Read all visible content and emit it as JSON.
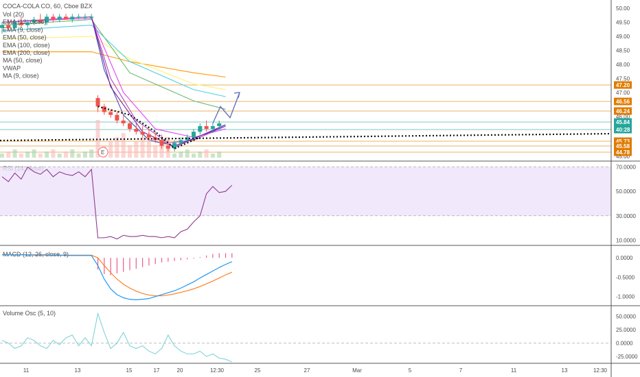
{
  "chart_data": {
    "type": "candlestick",
    "title": "COCA-COLA CO, 60, Cboe BZX",
    "main": {
      "legend": [
        "Vol (20)",
        "EMA (12, close)",
        "EMA (9, close)",
        "EMA (50, close)",
        "EMA (100, close)",
        "EMA (200, close)",
        "MA (50, close)",
        "VWAP",
        "MA (9, close)"
      ],
      "y_ticks": [
        "50.00",
        "49.50",
        "49.00",
        "48.50",
        "48.00",
        "47.50",
        "47.00",
        "46.00",
        "45.00"
      ],
      "ylim": [
        44.7,
        50.1
      ],
      "price_levels": [
        {
          "label": "47.20",
          "value": 47.2,
          "color": "#e07b00"
        },
        {
          "label": "46.56",
          "value": 46.56,
          "color": "#e07b00"
        },
        {
          "label": "46.24",
          "value": 46.24,
          "color": "#e07b00"
        },
        {
          "label": "45.84",
          "value": 45.84,
          "color": "#26a69a"
        },
        {
          "label": "40:28",
          "value": 45.62,
          "color": "#26a69a"
        },
        {
          "label": "45.73",
          "value": 45.28,
          "color": "#e07b00"
        },
        {
          "label": "45.58",
          "value": 44.98,
          "color": "#e07b00"
        },
        {
          "label": "44.78",
          "value": 44.78,
          "color": "#e07b00"
        }
      ],
      "candles": [
        {
          "x": 0,
          "o": 49.3,
          "h": 49.5,
          "l": 49.1,
          "c": 49.4
        },
        {
          "x": 1,
          "o": 49.4,
          "h": 49.6,
          "l": 49.2,
          "c": 49.3
        },
        {
          "x": 2,
          "o": 49.3,
          "h": 49.6,
          "l": 49.2,
          "c": 49.5
        },
        {
          "x": 3,
          "o": 49.5,
          "h": 49.7,
          "l": 49.3,
          "c": 49.4
        },
        {
          "x": 4,
          "o": 49.4,
          "h": 49.6,
          "l": 49.3,
          "c": 49.5
        },
        {
          "x": 5,
          "o": 49.5,
          "h": 49.7,
          "l": 49.4,
          "c": 49.6
        },
        {
          "x": 6,
          "o": 49.6,
          "h": 49.8,
          "l": 49.5,
          "c": 49.5
        },
        {
          "x": 7,
          "o": 49.5,
          "h": 49.8,
          "l": 49.4,
          "c": 49.7
        },
        {
          "x": 8,
          "o": 49.7,
          "h": 49.8,
          "l": 49.5,
          "c": 49.6
        },
        {
          "x": 9,
          "o": 49.6,
          "h": 49.8,
          "l": 49.5,
          "c": 49.7
        },
        {
          "x": 10,
          "o": 49.7,
          "h": 49.8,
          "l": 49.6,
          "c": 49.6
        },
        {
          "x": 11,
          "o": 49.6,
          "h": 49.8,
          "l": 49.5,
          "c": 49.7
        },
        {
          "x": 12,
          "o": 49.7,
          "h": 49.8,
          "l": 49.6,
          "c": 49.7
        },
        {
          "x": 13,
          "o": 49.7,
          "h": 49.8,
          "l": 49.6,
          "c": 49.7
        },
        {
          "x": 14,
          "o": 49.7,
          "h": 49.8,
          "l": 49.6,
          "c": 49.7
        },
        {
          "x": 15,
          "o": 46.8,
          "h": 46.9,
          "l": 46.3,
          "c": 46.5
        },
        {
          "x": 16,
          "o": 46.5,
          "h": 46.6,
          "l": 46.2,
          "c": 46.3
        },
        {
          "x": 17,
          "o": 46.3,
          "h": 46.4,
          "l": 46.1,
          "c": 46.2
        },
        {
          "x": 18,
          "o": 46.2,
          "h": 46.3,
          "l": 45.9,
          "c": 46.0
        },
        {
          "x": 19,
          "o": 46.0,
          "h": 46.2,
          "l": 45.8,
          "c": 45.9
        },
        {
          "x": 20,
          "o": 45.9,
          "h": 46.0,
          "l": 45.6,
          "c": 45.7
        },
        {
          "x": 21,
          "o": 45.7,
          "h": 45.9,
          "l": 45.5,
          "c": 45.6
        },
        {
          "x": 22,
          "o": 45.6,
          "h": 45.8,
          "l": 45.4,
          "c": 45.5
        },
        {
          "x": 23,
          "o": 45.5,
          "h": 45.7,
          "l": 45.3,
          "c": 45.4
        },
        {
          "x": 24,
          "o": 45.4,
          "h": 45.6,
          "l": 45.2,
          "c": 45.3
        },
        {
          "x": 25,
          "o": 45.3,
          "h": 45.5,
          "l": 45.0,
          "c": 45.1
        },
        {
          "x": 26,
          "o": 45.1,
          "h": 45.3,
          "l": 44.9,
          "c": 45.0
        },
        {
          "x": 27,
          "o": 45.0,
          "h": 45.3,
          "l": 44.9,
          "c": 45.2
        },
        {
          "x": 28,
          "o": 45.2,
          "h": 45.4,
          "l": 45.1,
          "c": 45.3
        },
        {
          "x": 29,
          "o": 45.3,
          "h": 45.5,
          "l": 45.2,
          "c": 45.4
        },
        {
          "x": 30,
          "o": 45.4,
          "h": 45.7,
          "l": 45.3,
          "c": 45.6
        },
        {
          "x": 31,
          "o": 45.6,
          "h": 45.9,
          "l": 45.5,
          "c": 45.8
        },
        {
          "x": 32,
          "o": 45.8,
          "h": 46.0,
          "l": 45.6,
          "c": 45.7
        },
        {
          "x": 33,
          "o": 45.7,
          "h": 45.9,
          "l": 45.6,
          "c": 45.8
        },
        {
          "x": 34,
          "o": 45.8,
          "h": 46.0,
          "l": 45.7,
          "c": 45.9
        }
      ],
      "arrow_path": [
        [
          33,
          45.9
        ],
        [
          34.2,
          46.5
        ],
        [
          35.7,
          46.1
        ],
        [
          37.2,
          47.0
        ]
      ],
      "earnings_marker": "E"
    },
    "rsi": {
      "label": "RSI (14, close)",
      "y_ticks": [
        "70.0000",
        "50.0000",
        "30.0000",
        "10.0000"
      ],
      "ylim": [
        8,
        72
      ],
      "band": [
        30,
        70
      ],
      "values": [
        62,
        58,
        65,
        60,
        70,
        66,
        64,
        68,
        62,
        66,
        64,
        63,
        66,
        62,
        68,
        12,
        12,
        13,
        11,
        14,
        13,
        13,
        14,
        13,
        13,
        12,
        13,
        12,
        17,
        19,
        25,
        30,
        48,
        54,
        49,
        50,
        55
      ]
    },
    "macd": {
      "label": "MACD (12, 26, close, 9)",
      "y_ticks": [
        "0.0000",
        "-0.5000",
        "-1.0000"
      ],
      "ylim": [
        -1.2,
        0.25
      ],
      "histogram": [
        0,
        0,
        0,
        0,
        0,
        0,
        0,
        0,
        0,
        0,
        0,
        0,
        0,
        0,
        0,
        -0.3,
        -0.42,
        -0.45,
        -0.4,
        -0.36,
        -0.32,
        -0.28,
        -0.24,
        -0.2,
        -0.16,
        -0.12,
        -0.1,
        -0.08,
        -0.06,
        -0.04,
        -0.02,
        0.02,
        0.06,
        0.1,
        0.12,
        0.12,
        0.12
      ],
      "macd_line": [
        0.08,
        0.08,
        0.08,
        0.08,
        0.08,
        0.07,
        0.07,
        0.07,
        0.07,
        0.07,
        0.06,
        0.06,
        0.06,
        0.06,
        0.06,
        -0.2,
        -0.55,
        -0.8,
        -0.95,
        -1.03,
        -1.07,
        -1.08,
        -1.07,
        -1.05,
        -1.0,
        -0.95,
        -0.9,
        -0.85,
        -0.78,
        -0.7,
        -0.62,
        -0.52,
        -0.43,
        -0.34,
        -0.25,
        -0.17,
        -0.1
      ],
      "signal_line": [
        0.08,
        0.08,
        0.08,
        0.08,
        0.08,
        0.08,
        0.08,
        0.08,
        0.07,
        0.07,
        0.07,
        0.07,
        0.07,
        0.07,
        0.07,
        0.0,
        -0.2,
        -0.38,
        -0.55,
        -0.68,
        -0.78,
        -0.86,
        -0.92,
        -0.96,
        -0.98,
        -0.98,
        -0.96,
        -0.93,
        -0.89,
        -0.85,
        -0.8,
        -0.74,
        -0.67,
        -0.6,
        -0.52,
        -0.44,
        -0.37
      ]
    },
    "volume_osc": {
      "label": "Volume Osc (5, 10)",
      "y_ticks": [
        "50.0000",
        "25.0000",
        "0.0000",
        "-25.0000"
      ],
      "ylim": [
        -35,
        62
      ],
      "values": [
        5,
        0,
        -10,
        -5,
        10,
        5,
        -5,
        -10,
        5,
        -3,
        10,
        15,
        -5,
        10,
        -5,
        55,
        20,
        -10,
        0,
        20,
        -5,
        -10,
        -5,
        -15,
        -20,
        -10,
        15,
        -5,
        -15,
        -20,
        -20,
        -15,
        -25,
        -20,
        -28,
        -30,
        -35
      ]
    },
    "x_ticks": [
      "11",
      "13",
      "15",
      "17",
      "20",
      "12:30",
      "25",
      "27",
      "Mar",
      "5",
      "7",
      "11",
      "13",
      "12:30"
    ]
  }
}
